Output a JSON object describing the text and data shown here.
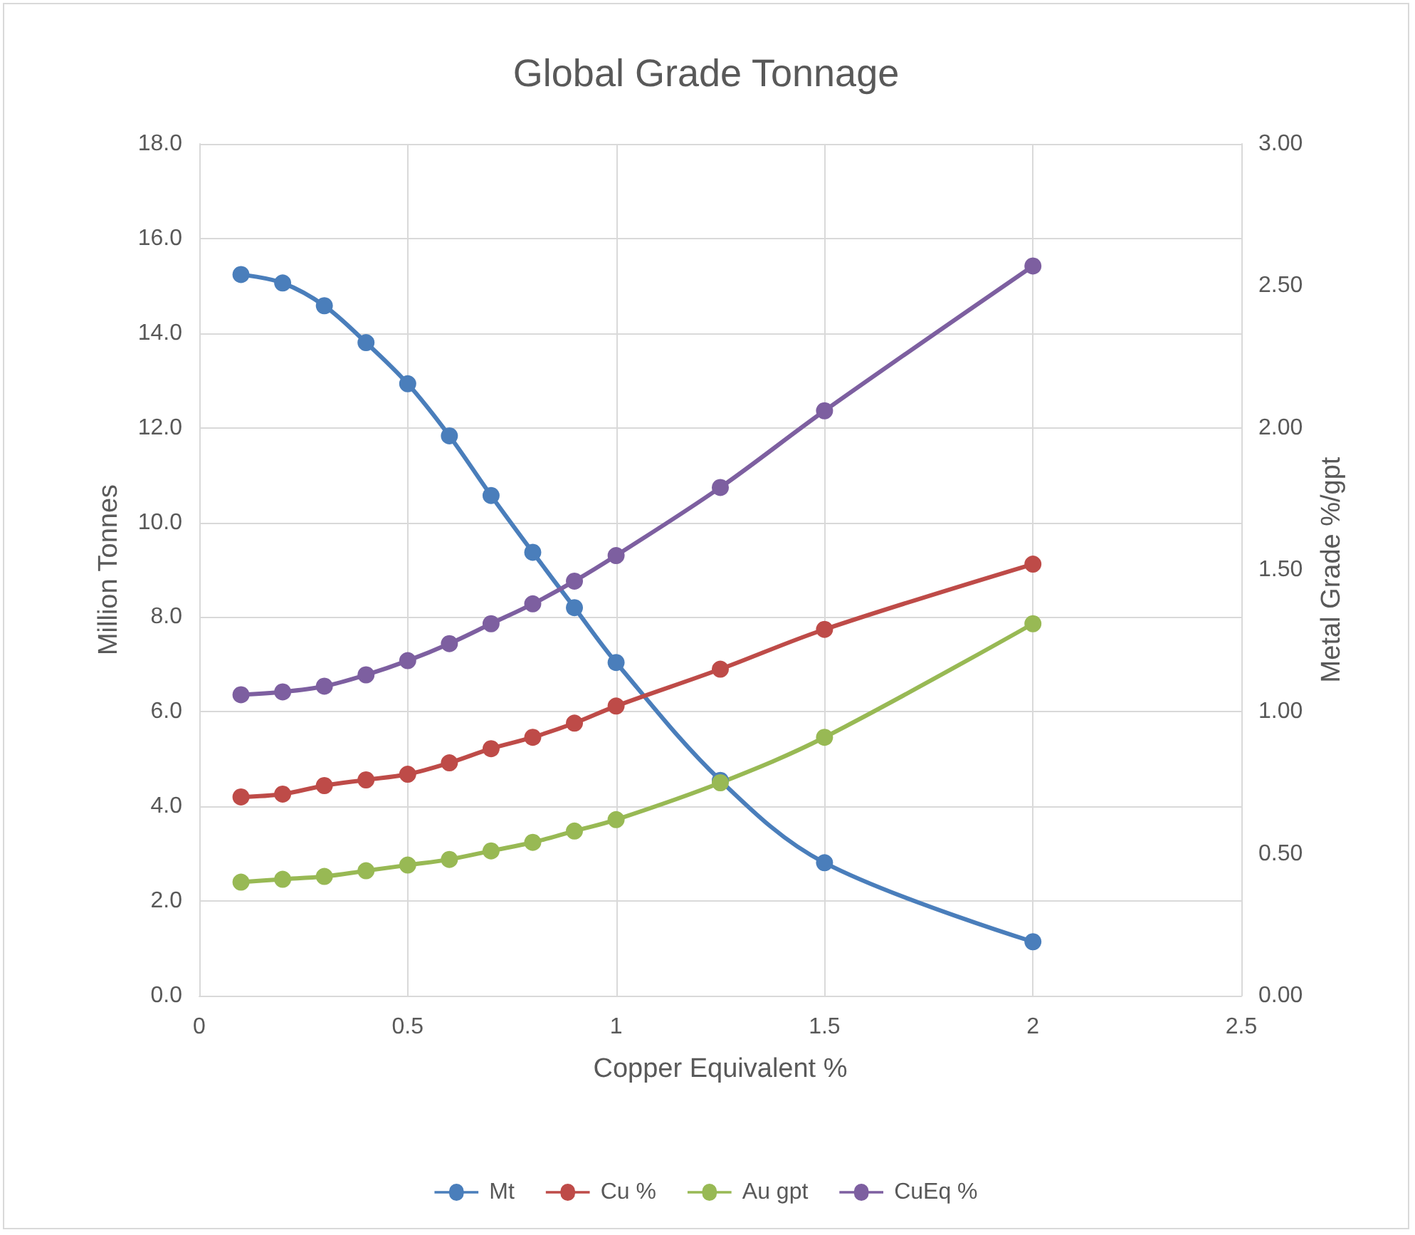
{
  "chart_data": {
    "type": "line",
    "title": "Global Grade Tonnage",
    "xlabel": "Copper Equivalent %",
    "ylabel": "Million Tonnes",
    "y2label": "Metal Grade %/gpt",
    "x": [
      0.1,
      0.2,
      0.3,
      0.4,
      0.5,
      0.6,
      0.7,
      0.8,
      0.9,
      1,
      1.25,
      1.5,
      2
    ],
    "series": [
      {
        "name": "Mt",
        "color": "#4a7ebb",
        "values": [
          15.24,
          15.06,
          14.58,
          13.8,
          12.93,
          11.83,
          10.57,
          9.37,
          8.2,
          7.04,
          4.55,
          2.81,
          1.14
        ]
      },
      {
        "name": "Cu %",
        "color": "#be4b48",
        "axis": "y2",
        "values": [
          0.7,
          0.71,
          0.74,
          0.76,
          0.78,
          0.82,
          0.87,
          0.91,
          0.96,
          1.02,
          1.15,
          1.29,
          1.52
        ]
      },
      {
        "name": "Au gpt",
        "color": "#98b954",
        "axis": "y2",
        "values": [
          0.4,
          0.41,
          0.42,
          0.44,
          0.46,
          0.48,
          0.51,
          0.54,
          0.58,
          0.62,
          0.75,
          0.91,
          1.31
        ]
      },
      {
        "name": "CuEq %",
        "color": "#7d5fa0",
        "axis": "y2",
        "values": [
          1.06,
          1.07,
          1.09,
          1.13,
          1.18,
          1.24,
          1.31,
          1.38,
          1.46,
          1.55,
          1.79,
          2.06,
          2.57
        ]
      }
    ],
    "xlim": [
      0,
      2.5
    ],
    "xticks": [
      0,
      0.5,
      1,
      1.5,
      2,
      2.5
    ],
    "ylim": [
      0,
      18
    ],
    "yticks": [
      {
        "value": 0,
        "label": "0.0"
      },
      {
        "value": 2,
        "label": "2.0"
      },
      {
        "value": 4,
        "label": "4.0"
      },
      {
        "value": 6,
        "label": "6.0"
      },
      {
        "value": 8,
        "label": "8.0"
      },
      {
        "value": 10,
        "label": "10.0"
      },
      {
        "value": 12,
        "label": "12.0"
      },
      {
        "value": 14,
        "label": "14.0"
      },
      {
        "value": 16,
        "label": "16.0"
      },
      {
        "value": 18,
        "label": "18.0"
      }
    ],
    "y2lim": [
      0,
      3
    ],
    "y2ticks": [
      {
        "value": 0,
        "label": "0.00"
      },
      {
        "value": 0.5,
        "label": "0.50"
      },
      {
        "value": 1,
        "label": "1.00"
      },
      {
        "value": 1.5,
        "label": "1.50"
      },
      {
        "value": 2,
        "label": "2.00"
      },
      {
        "value": 2.5,
        "label": "2.50"
      },
      {
        "value": 3,
        "label": "3.00"
      }
    ],
    "grid": true,
    "legend": "bottom",
    "marker": "circle",
    "line_style": "solid"
  }
}
